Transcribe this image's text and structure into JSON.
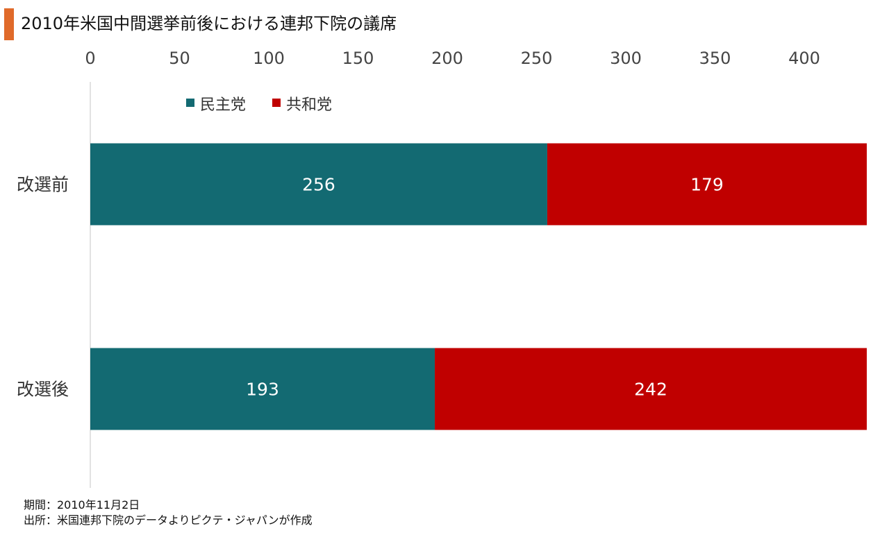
{
  "title": "2010年米国中間選挙前後における連邦下院の議席",
  "chart_data": {
    "type": "bar",
    "orientation": "horizontal",
    "stacked": true,
    "categories": [
      "改選前",
      "改選後"
    ],
    "series": [
      {
        "name": "民主党",
        "color": "#136a72",
        "values": [
          256,
          193
        ]
      },
      {
        "name": "共和党",
        "color": "#c00000",
        "values": [
          179,
          242
        ]
      }
    ],
    "xaxis": {
      "ticks": [
        0,
        50,
        100,
        150,
        200,
        250,
        300,
        350,
        400
      ],
      "position": "top"
    },
    "xlim": [
      0,
      435
    ],
    "legend": "top-left",
    "grid": false,
    "data_labels": true
  },
  "footnotes": {
    "period": "期間：2010年11月2日",
    "source": "出所：米国連邦下院のデータよりピクテ・ジャパンが作成"
  }
}
